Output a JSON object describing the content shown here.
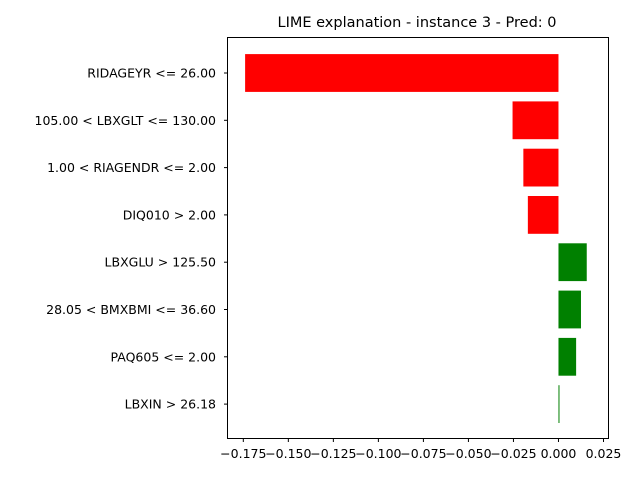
{
  "chart_data": {
    "type": "bar",
    "orientation": "horizontal",
    "title": "LIME explanation - instance 3 - Pred: 0",
    "xlabel": "",
    "ylabel": "",
    "xlim": [
      -0.1835,
      0.0275
    ],
    "grid": false,
    "legend": "none",
    "colors": {
      "positive": "#008000",
      "negative": "#ff0000"
    },
    "categories": [
      "RIDAGEYR <= 26.00",
      "105.00 < LBXGLT <= 130.00",
      "1.00 < RIAGENDR <= 2.00",
      "DIQ010 > 2.00",
      "LBXGLU > 125.50",
      "28.05 < BMXBMI <= 36.60",
      "PAQ605 <= 2.00",
      "LBXIN > 26.18"
    ],
    "values": [
      -0.174,
      -0.0255,
      -0.0195,
      -0.017,
      0.0157,
      0.0125,
      0.0098,
      0.0005
    ],
    "x_ticks": [
      -0.175,
      -0.15,
      -0.125,
      -0.1,
      -0.075,
      -0.05,
      -0.025,
      0.0,
      0.025
    ],
    "x_tick_labels": [
      "−0.175",
      "−0.150",
      "−0.125",
      "−0.100",
      "−0.075",
      "−0.050",
      "−0.025",
      "0.000",
      "0.025"
    ]
  }
}
